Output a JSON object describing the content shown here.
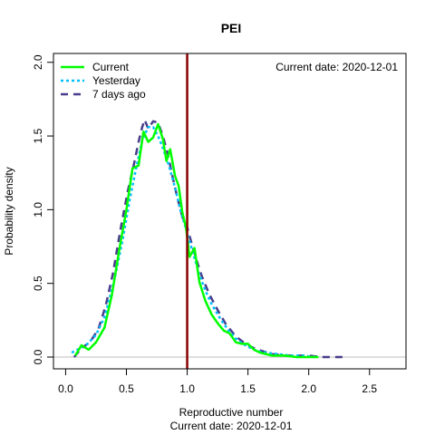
{
  "chart_data": {
    "type": "line",
    "title": "PEI",
    "xlabel": "Reproductive number",
    "xlabel_sub": "Current date:  2020-12-01",
    "ylabel": "Probability density",
    "annotation": "Current date:  2020-12-01",
    "xlim": [
      -0.1,
      2.8
    ],
    "ylim": [
      -0.08,
      2.06
    ],
    "xticks": [
      0.0,
      0.5,
      1.0,
      1.5,
      2.0,
      2.5
    ],
    "xtick_labels": [
      "0.0",
      "0.5",
      "1.0",
      "1.5",
      "2.0",
      "2.5"
    ],
    "yticks": [
      0.0,
      0.5,
      1.0,
      1.5,
      2.0
    ],
    "ytick_labels": [
      "0.0",
      "0.5",
      "1.0",
      "1.5",
      "2.0"
    ],
    "reference_line": {
      "x": 1.0,
      "color": "#8b0000"
    },
    "baseline": {
      "y": 0,
      "color": "#bebebe"
    },
    "legend_position": "top-left",
    "series": [
      {
        "name": "Current",
        "color": "#00ff00",
        "dash": "solid",
        "x": [
          0.08,
          0.13,
          0.19,
          0.25,
          0.32,
          0.38,
          0.44,
          0.5,
          0.55,
          0.6,
          0.64,
          0.68,
          0.72,
          0.76,
          0.8,
          0.83,
          0.86,
          0.9,
          0.93,
          0.96,
          0.99,
          1.02,
          1.06,
          1.1,
          1.15,
          1.2,
          1.25,
          1.3,
          1.35,
          1.4,
          1.45,
          1.5,
          1.55,
          1.6,
          1.7,
          1.8,
          1.9,
          2.0,
          2.08
        ],
        "values": [
          0.01,
          0.08,
          0.05,
          0.1,
          0.2,
          0.42,
          0.72,
          1.0,
          1.28,
          1.3,
          1.53,
          1.46,
          1.49,
          1.58,
          1.48,
          1.33,
          1.41,
          1.23,
          1.16,
          0.98,
          0.88,
          0.68,
          0.74,
          0.51,
          0.38,
          0.29,
          0.23,
          0.18,
          0.16,
          0.1,
          0.09,
          0.09,
          0.05,
          0.03,
          0.01,
          0.01,
          0.0,
          0.0,
          0.0
        ]
      },
      {
        "name": "Yesterday",
        "color": "#00bfff",
        "dash": "dotted",
        "x": [
          0.05,
          0.12,
          0.18,
          0.25,
          0.32,
          0.4,
          0.47,
          0.53,
          0.58,
          0.63,
          0.68,
          0.72,
          0.76,
          0.8,
          0.85,
          0.9,
          0.95,
          1.0,
          1.05,
          1.1,
          1.15,
          1.2,
          1.28,
          1.35,
          1.42,
          1.5,
          1.58,
          1.65,
          1.75,
          1.85,
          1.95,
          2.05
        ],
        "values": [
          0.03,
          0.06,
          0.09,
          0.15,
          0.27,
          0.52,
          0.8,
          1.08,
          1.28,
          1.47,
          1.56,
          1.56,
          1.5,
          1.42,
          1.3,
          1.15,
          0.98,
          0.84,
          0.7,
          0.56,
          0.45,
          0.36,
          0.25,
          0.17,
          0.11,
          0.07,
          0.04,
          0.03,
          0.02,
          0.01,
          0.01,
          0.0
        ]
      },
      {
        "name": "7 days ago",
        "color": "#483d8b",
        "dash": "dashed",
        "x": [
          0.07,
          0.13,
          0.2,
          0.27,
          0.33,
          0.39,
          0.45,
          0.51,
          0.56,
          0.6,
          0.63,
          0.65,
          0.68,
          0.72,
          0.76,
          0.8,
          0.84,
          0.88,
          0.92,
          0.96,
          1.0,
          1.04,
          1.08,
          1.12,
          1.18,
          1.25,
          1.32,
          1.4,
          1.48,
          1.55,
          1.62,
          1.7,
          1.8,
          1.9,
          2.0,
          2.1,
          2.2,
          2.3
        ],
        "values": [
          0.0,
          0.06,
          0.1,
          0.19,
          0.35,
          0.57,
          0.86,
          1.12,
          1.3,
          1.46,
          1.56,
          1.61,
          1.55,
          1.6,
          1.59,
          1.5,
          1.38,
          1.22,
          1.08,
          0.95,
          0.88,
          0.76,
          0.65,
          0.55,
          0.43,
          0.32,
          0.22,
          0.14,
          0.09,
          0.06,
          0.04,
          0.02,
          0.01,
          0.01,
          0.01,
          0.0,
          0.0,
          0.0
        ]
      }
    ]
  }
}
